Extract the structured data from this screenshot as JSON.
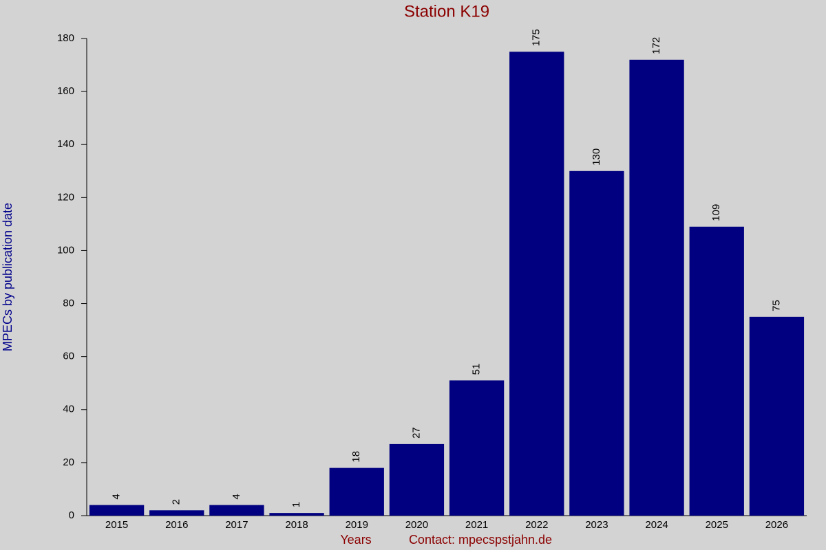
{
  "chart_data": {
    "type": "bar",
    "title": "Station K19",
    "ylabel": "MPECs by publication date",
    "xlabel": "Years",
    "annotation": "Contact: mpecspstjahn.de",
    "categories": [
      "2015",
      "2016",
      "2017",
      "2018",
      "2019",
      "2020",
      "2021",
      "2022",
      "2023",
      "2024",
      "2025",
      "2026"
    ],
    "values": [
      4,
      2,
      4,
      1,
      18,
      27,
      51,
      175,
      130,
      172,
      109,
      75
    ],
    "color": "#000080",
    "ylim": [
      0,
      180
    ],
    "yticks": [
      0,
      20,
      40,
      60,
      80,
      100,
      120,
      140,
      160,
      180
    ],
    "grid": false
  }
}
